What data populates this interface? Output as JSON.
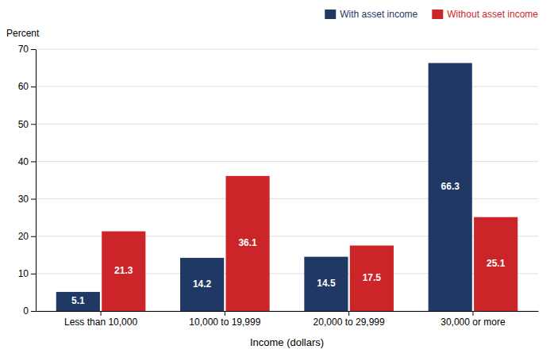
{
  "chart_data": {
    "type": "bar",
    "categories": [
      "Less than 10,000",
      "10,000 to 19,999",
      "20,000 to 29,999",
      "30,000 or more"
    ],
    "series": [
      {
        "name": "With asset income",
        "color": "#1f3864",
        "values": [
          5.1,
          14.2,
          14.5,
          66.3
        ]
      },
      {
        "name": "Without asset income",
        "color": "#cc2529",
        "values": [
          21.3,
          36.1,
          17.5,
          25.1
        ]
      }
    ],
    "xlabel": "Income (dollars)",
    "ylabel": "Percent",
    "ylim": [
      0,
      70
    ],
    "yticks": [
      0,
      10,
      20,
      30,
      40,
      50,
      60,
      70
    ],
    "grid": true,
    "data_labels": true,
    "legend": "top-right"
  }
}
